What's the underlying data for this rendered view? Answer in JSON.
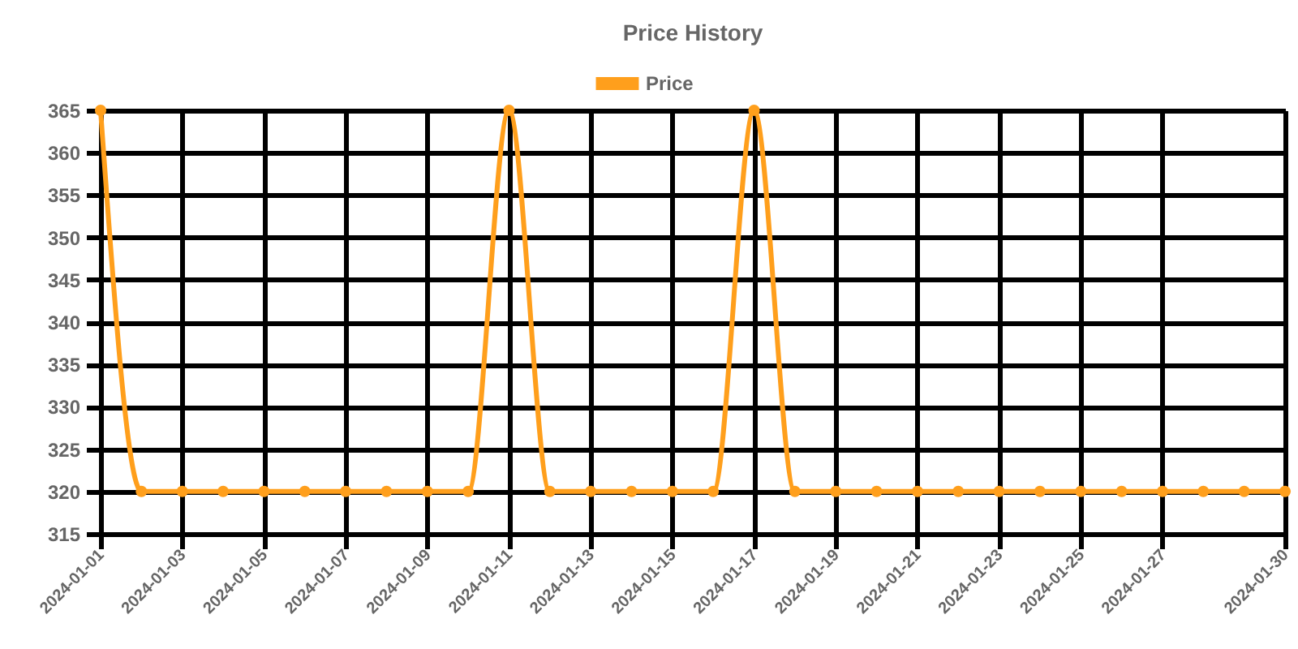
{
  "chart_data": {
    "type": "line",
    "title": "Price History",
    "categories": [
      "2024-01-01",
      null,
      "2024-01-03",
      null,
      "2024-01-05",
      null,
      "2024-01-07",
      null,
      "2024-01-09",
      null,
      "2024-01-11",
      null,
      "2024-01-13",
      null,
      "2024-01-15",
      null,
      "2024-01-17",
      null,
      "2024-01-19",
      null,
      "2024-01-21",
      null,
      "2024-01-23",
      null,
      "2024-01-25",
      null,
      "2024-01-27",
      null,
      null,
      "2024-01-30"
    ],
    "series": [
      {
        "name": "Price",
        "color": "#ff9f1c",
        "values": [
          365,
          320,
          320,
          320,
          320,
          320,
          320,
          320,
          320,
          320,
          365,
          320,
          320,
          320,
          320,
          320,
          365,
          320,
          320,
          320,
          320,
          320,
          320,
          320,
          320,
          320,
          320,
          320,
          320,
          320
        ]
      }
    ],
    "ylim": [
      315,
      365
    ],
    "yticks": [
      315,
      320,
      325,
      330,
      335,
      340,
      345,
      350,
      355,
      360,
      365
    ],
    "grid": true,
    "legend": "top",
    "marker": "circle",
    "line_style": "solid"
  }
}
